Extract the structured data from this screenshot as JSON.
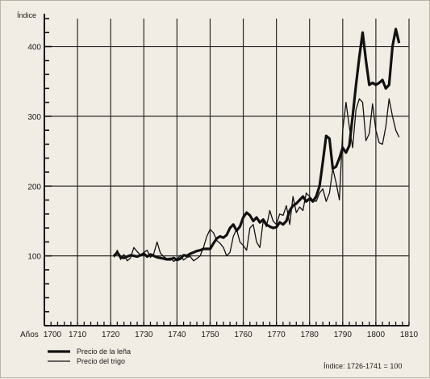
{
  "chart_data": {
    "type": "line",
    "ylabel": "Índice",
    "xlabel_prefix": "Años",
    "xlim": [
      1700,
      1810
    ],
    "ylim": [
      0,
      440
    ],
    "grid": true,
    "x_ticks": [
      1700,
      1710,
      1720,
      1730,
      1740,
      1750,
      1760,
      1770,
      1780,
      1790,
      1800,
      1810
    ],
    "x_tick_labels": [
      "1700",
      "1710",
      "1720",
      "1730",
      "1740",
      "1750",
      "1760",
      "1770",
      "1780",
      "1790",
      "1800",
      "1810"
    ],
    "y_ticks": [
      100,
      200,
      300,
      400
    ],
    "y_tick_labels": [
      "100",
      "200",
      "300",
      "400"
    ],
    "legend_position": "bottom-left",
    "note": "Índice: 1726-1741 = 100",
    "series": [
      {
        "name": "Precio de la leña",
        "style": "thick",
        "color": "#111111",
        "x": [
          1721,
          1722,
          1723,
          1724,
          1725,
          1726,
          1727,
          1728,
          1729,
          1730,
          1731,
          1732,
          1733,
          1734,
          1735,
          1736,
          1737,
          1738,
          1739,
          1740,
          1741,
          1742,
          1743,
          1744,
          1745,
          1746,
          1747,
          1748,
          1749,
          1750,
          1751,
          1752,
          1753,
          1754,
          1755,
          1756,
          1757,
          1758,
          1759,
          1760,
          1761,
          1762,
          1763,
          1764,
          1765,
          1766,
          1767,
          1768,
          1769,
          1770,
          1771,
          1772,
          1773,
          1774,
          1775,
          1776,
          1777,
          1778,
          1779,
          1780,
          1781,
          1782,
          1783,
          1784,
          1785,
          1786,
          1787,
          1788,
          1789,
          1790,
          1791,
          1792,
          1793,
          1794,
          1795,
          1796,
          1797,
          1798,
          1799,
          1800,
          1801,
          1802,
          1803,
          1804,
          1805,
          1806,
          1807
        ],
        "values": [
          100,
          105,
          98,
          97,
          99,
          101,
          100,
          99,
          101,
          103,
          99,
          102,
          100,
          98,
          97,
          96,
          95,
          95,
          97,
          94,
          96,
          101,
          100,
          103,
          105,
          107,
          108,
          110,
          110,
          110,
          118,
          125,
          128,
          126,
          130,
          140,
          145,
          136,
          142,
          155,
          162,
          158,
          150,
          155,
          148,
          152,
          145,
          142,
          140,
          141,
          148,
          145,
          150,
          165,
          172,
          175,
          180,
          185,
          178,
          182,
          178,
          185,
          200,
          235,
          272,
          268,
          225,
          228,
          240,
          255,
          248,
          258,
          300,
          345,
          385,
          420,
          380,
          345,
          348,
          345,
          348,
          352,
          340,
          345,
          400,
          425,
          405
        ]
      },
      {
        "name": "Precio del trigo",
        "style": "thin",
        "color": "#111111",
        "x": [
          1721,
          1722,
          1723,
          1724,
          1725,
          1726,
          1727,
          1728,
          1729,
          1730,
          1731,
          1732,
          1733,
          1734,
          1735,
          1736,
          1737,
          1738,
          1739,
          1740,
          1741,
          1742,
          1743,
          1744,
          1745,
          1746,
          1747,
          1748,
          1749,
          1750,
          1751,
          1752,
          1753,
          1754,
          1755,
          1756,
          1757,
          1758,
          1759,
          1760,
          1761,
          1762,
          1763,
          1764,
          1765,
          1766,
          1767,
          1768,
          1769,
          1770,
          1771,
          1772,
          1773,
          1774,
          1775,
          1776,
          1777,
          1778,
          1779,
          1780,
          1781,
          1782,
          1783,
          1784,
          1785,
          1786,
          1787,
          1788,
          1789,
          1790,
          1791,
          1792,
          1793,
          1794,
          1795,
          1796,
          1797,
          1798,
          1799,
          1800,
          1801,
          1802,
          1803,
          1804,
          1805,
          1806,
          1807
        ],
        "values": [
          98,
          108,
          95,
          102,
          93,
          97,
          112,
          106,
          101,
          105,
          108,
          98,
          103,
          120,
          104,
          99,
          96,
          97,
          92,
          95,
          101,
          94,
          98,
          99,
          93,
          96,
          100,
          112,
          128,
          138,
          133,
          122,
          118,
          112,
          100,
          105,
          128,
          138,
          120,
          115,
          108,
          140,
          145,
          120,
          112,
          150,
          142,
          165,
          150,
          145,
          160,
          158,
          172,
          145,
          185,
          162,
          170,
          165,
          190,
          185,
          180,
          178,
          190,
          196,
          178,
          190,
          225,
          205,
          180,
          280,
          320,
          285,
          255,
          310,
          325,
          320,
          265,
          275,
          318,
          280,
          262,
          260,
          285,
          325,
          300,
          280,
          270
        ]
      }
    ]
  }
}
